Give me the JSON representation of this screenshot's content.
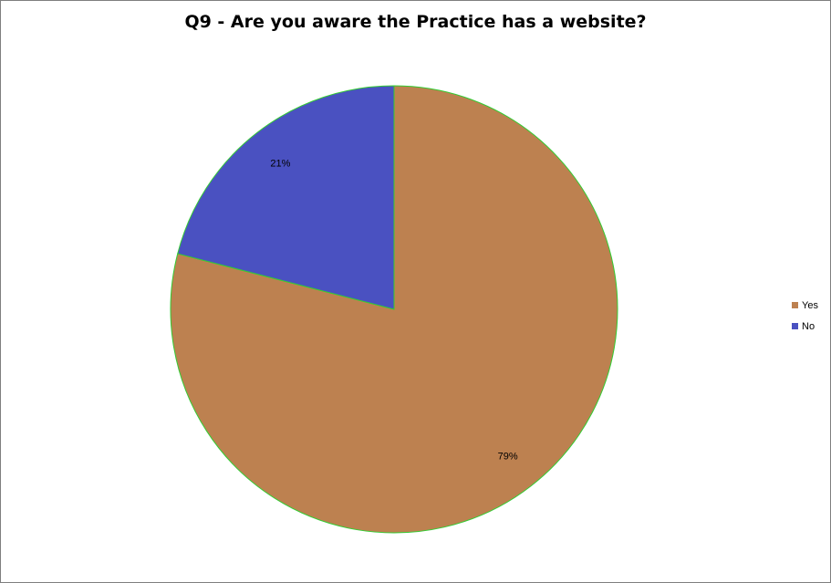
{
  "chart_data": {
    "type": "pie",
    "title": "Q9 - Are you aware the Practice has a website?",
    "categories": [
      "Yes",
      "No"
    ],
    "values": [
      79,
      21
    ],
    "data_labels": [
      "79%",
      "21%"
    ],
    "colors": [
      "#bd8150",
      "#4a51c1"
    ],
    "slice_border_color": "#33cc33",
    "legend": {
      "placement": "right",
      "items": [
        {
          "label": "Yes",
          "color": "#bd8150"
        },
        {
          "label": "No",
          "color": "#4a51c1"
        }
      ]
    }
  }
}
